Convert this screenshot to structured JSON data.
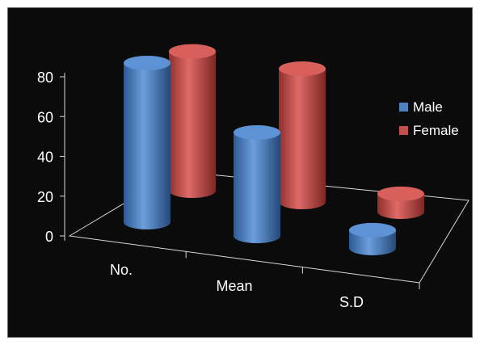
{
  "chart_data": {
    "type": "bar",
    "style": "3d-cylinder",
    "categories": [
      "No.",
      "Mean",
      "S.D"
    ],
    "series": [
      {
        "name": "Male",
        "values": [
          80,
          52,
          9
        ]
      },
      {
        "name": "Female",
        "values": [
          70,
          67,
          9
        ]
      }
    ],
    "yticks": [
      "0",
      "20",
      "40",
      "60",
      "80"
    ],
    "ylim": [
      0,
      80
    ],
    "title": "",
    "xlabel": "",
    "ylabel": "",
    "legend": "right",
    "colors": {
      "Male": "#4f81bd",
      "Female": "#c0504d",
      "background": "#0b0b0b",
      "axis": "#d9d9d9",
      "text": "#ffffff"
    }
  }
}
